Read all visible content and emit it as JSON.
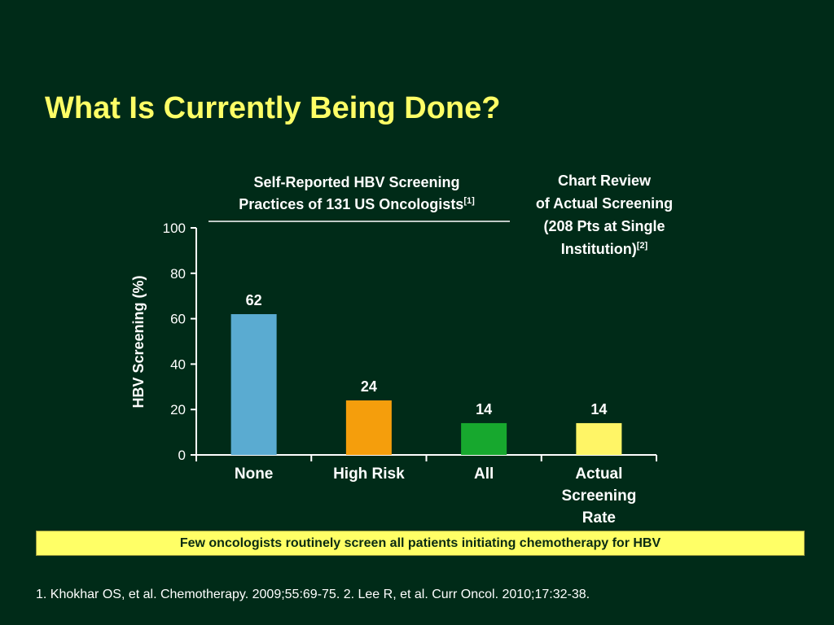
{
  "slide": {
    "title": "What Is Currently Being Done?",
    "banner": "Few oncologists routinely screen all patients initiating chemotherapy for HBV",
    "footnote": "1. Khokhar OS, et al. Chemotherapy. 2009;55:69-75. 2. Lee R, et al. Curr Oncol. 2010;17:32-38."
  },
  "colors": {
    "background": "#002b18",
    "title": "#ffff66",
    "banner": "#ffff66"
  },
  "chart_data": {
    "type": "bar",
    "title": "",
    "ylabel": "HBV Screening (%)",
    "xlabel": "",
    "ylim": [
      0,
      100
    ],
    "yticks": [
      0,
      20,
      40,
      60,
      80,
      100
    ],
    "grid": false,
    "categories": [
      [
        "None"
      ],
      [
        "High Risk"
      ],
      [
        "All"
      ],
      [
        "Actual",
        "Screening",
        "Rate"
      ]
    ],
    "values": [
      62,
      24,
      14,
      14
    ],
    "data_labels": [
      "62",
      "24",
      "14",
      "14"
    ],
    "bar_colors": [
      "#5aabd1",
      "#f59e0c",
      "#17a82e",
      "#fff566"
    ],
    "group_headers": [
      {
        "lines": [
          "Self-Reported HBV Screening",
          "Practices of 131 US Oncologists"
        ],
        "superscript": "[1]"
      },
      {
        "lines": [
          "Chart Review",
          "of Actual Screening",
          "(208 Pts at Single",
          "Institution)"
        ],
        "superscript": "[2]"
      }
    ]
  }
}
